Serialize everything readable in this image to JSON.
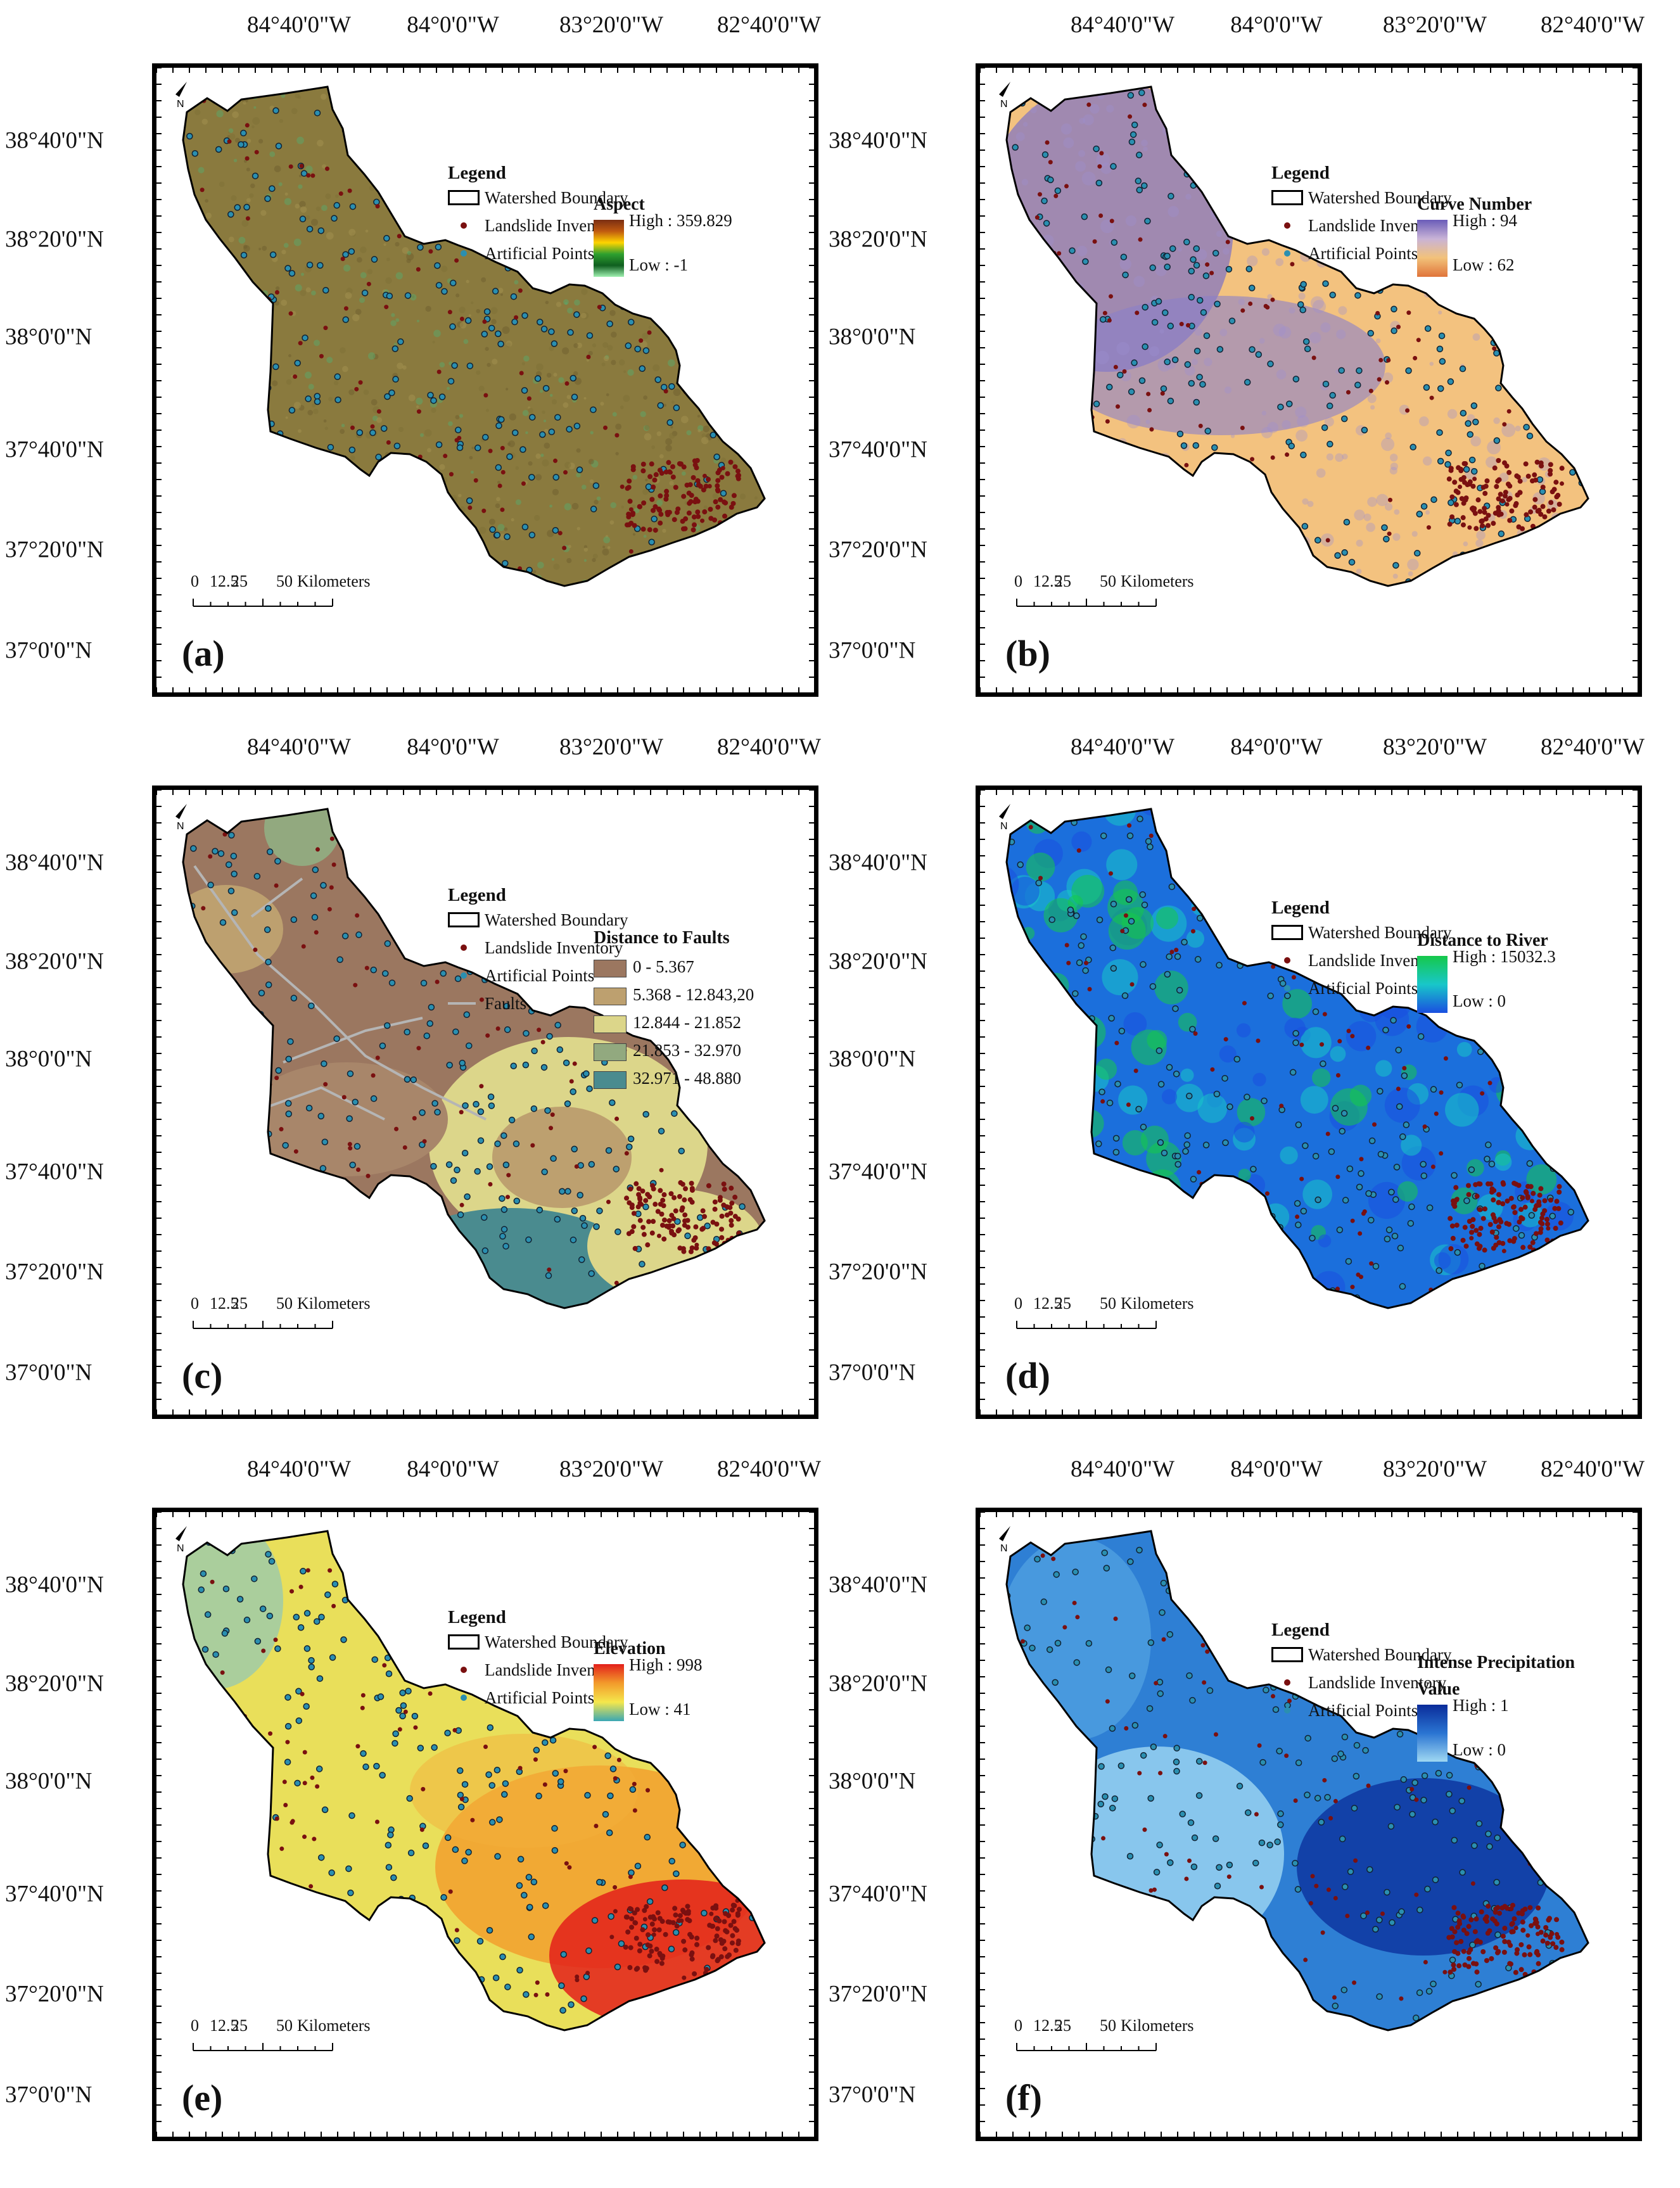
{
  "lon_labels": [
    "84°40'0\"W",
    "84°0'0\"W",
    "83°20'0\"W",
    "82°40'0\"W"
  ],
  "lat_labels": [
    "38°40'0\"N",
    "38°20'0\"N",
    "38°0'0\"N",
    "37°40'0\"N",
    "37°20'0\"N",
    "37°0'0\"N"
  ],
  "legend_common": {
    "title": "Legend",
    "watershed": "Watershed Boundary",
    "landslide": "Landslide Inventory",
    "artificial": "Artificial Points",
    "faults": "Faults"
  },
  "scale": {
    "ticks": [
      "0",
      "12.5",
      "25",
      "50"
    ],
    "unit": "Kilometers"
  },
  "north_label": "N",
  "colors": {
    "landslide": "#7a1010",
    "artificial": "#2a8fb0",
    "boundary": "#000000"
  },
  "panels": [
    {
      "tag": "(a)",
      "layer": "Aspect",
      "high": "High : 359.829",
      "low": "Low : -1",
      "ramp": [
        "#7a2e12",
        "#c05a10",
        "#ffd400",
        "#2fa02f",
        "#0f5f1f",
        "#9ff0b0"
      ],
      "fill": "#8a7a3e"
    },
    {
      "tag": "(b)",
      "layer": "Curve Number",
      "high": "High : 94",
      "low": "Low : 62",
      "ramp": [
        "#6a5cb8",
        "#c9b3d6",
        "#f2c27a",
        "#e0743a"
      ],
      "fill": "#f3c27f"
    },
    {
      "tag": "(c)",
      "layer": "Distance to Faults",
      "classes": [
        {
          "label": "0 - 5.367",
          "color": "#9b7760"
        },
        {
          "label": "5.368 - 12.843,20",
          "color": "#bda06f"
        },
        {
          "label": "12.844 - 21.852",
          "color": "#dcd68a"
        },
        {
          "label": "21.853 - 32.970",
          "color": "#92a97f"
        },
        {
          "label": "32.971 - 48.880",
          "color": "#4a8b8f"
        }
      ],
      "fill": "#9b7760"
    },
    {
      "tag": "(d)",
      "layer": "Distance to River",
      "high": "High : 15032.3",
      "low": "Low : 0",
      "ramp": [
        "#16c84a",
        "#18c7c9",
        "#1a4fe0"
      ],
      "fill": "#1b6fdc"
    },
    {
      "tag": "(e)",
      "layer": "Elevation",
      "high": "High : 998",
      "low": "Low : 41",
      "ramp": [
        "#e3201b",
        "#f29b2b",
        "#f5e74c",
        "#3aa7b4"
      ],
      "fill": "#e9df5a"
    },
    {
      "tag": "(f)",
      "layer": "Intense Precipitation",
      "layer2": "Value",
      "high": "High : 1",
      "low": "Low : 0",
      "ramp": [
        "#0a2c9a",
        "#2a74d2",
        "#9fd8f2"
      ],
      "fill": "#2e7fd4"
    }
  ]
}
